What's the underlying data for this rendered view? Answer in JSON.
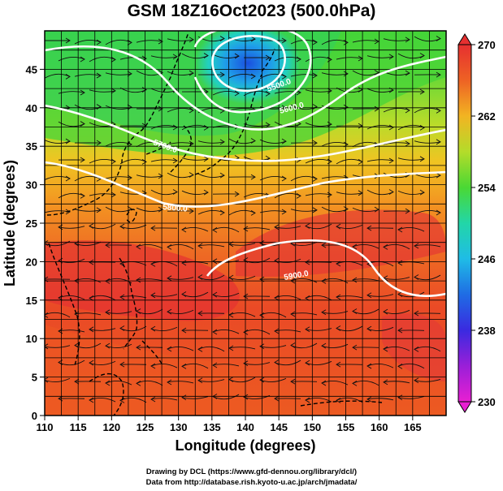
{
  "figure": {
    "title": "GSM 18Z16Oct2023 (500.0hPa)",
    "xlabel": "Longitude (degrees)",
    "ylabel": "Latitude  (degrees)",
    "credit_line1": "Drawing by DCL (https://www.gfd-dennou.org/library/dcl/)",
    "credit_line2": "Data from http://database.rish.kyoto-u.ac.jp/arch/jmadata/"
  },
  "chart_data": {
    "type": "heatmap",
    "variable": "temperature field with geopotential height contours and wind streamlines",
    "x_ticks": [
      110,
      115,
      120,
      125,
      130,
      135,
      140,
      145,
      150,
      155,
      160,
      165
    ],
    "y_ticks": [
      0,
      5,
      10,
      15,
      20,
      25,
      30,
      35,
      40,
      45
    ],
    "xlim": [
      110,
      170
    ],
    "ylim": [
      0,
      50
    ],
    "colorbar": {
      "ticks": [
        230,
        238,
        246,
        254,
        262,
        270
      ],
      "range": [
        230,
        270
      ],
      "colors": [
        "#e81fd2",
        "#6a1fd8",
        "#1f3ce0",
        "#1fb4e8",
        "#22d8b0",
        "#3ed63a",
        "#9ae02c",
        "#f2cf22",
        "#f49a22",
        "#ee5a22",
        "#e63030"
      ]
    },
    "contours": [
      {
        "label": "5500.0"
      },
      {
        "label": "5600.0"
      },
      {
        "label": "5700.0"
      },
      {
        "label": "5800.0"
      },
      {
        "label": "5900.0"
      }
    ],
    "low_center": {
      "lon": 140,
      "lat": 47
    }
  }
}
